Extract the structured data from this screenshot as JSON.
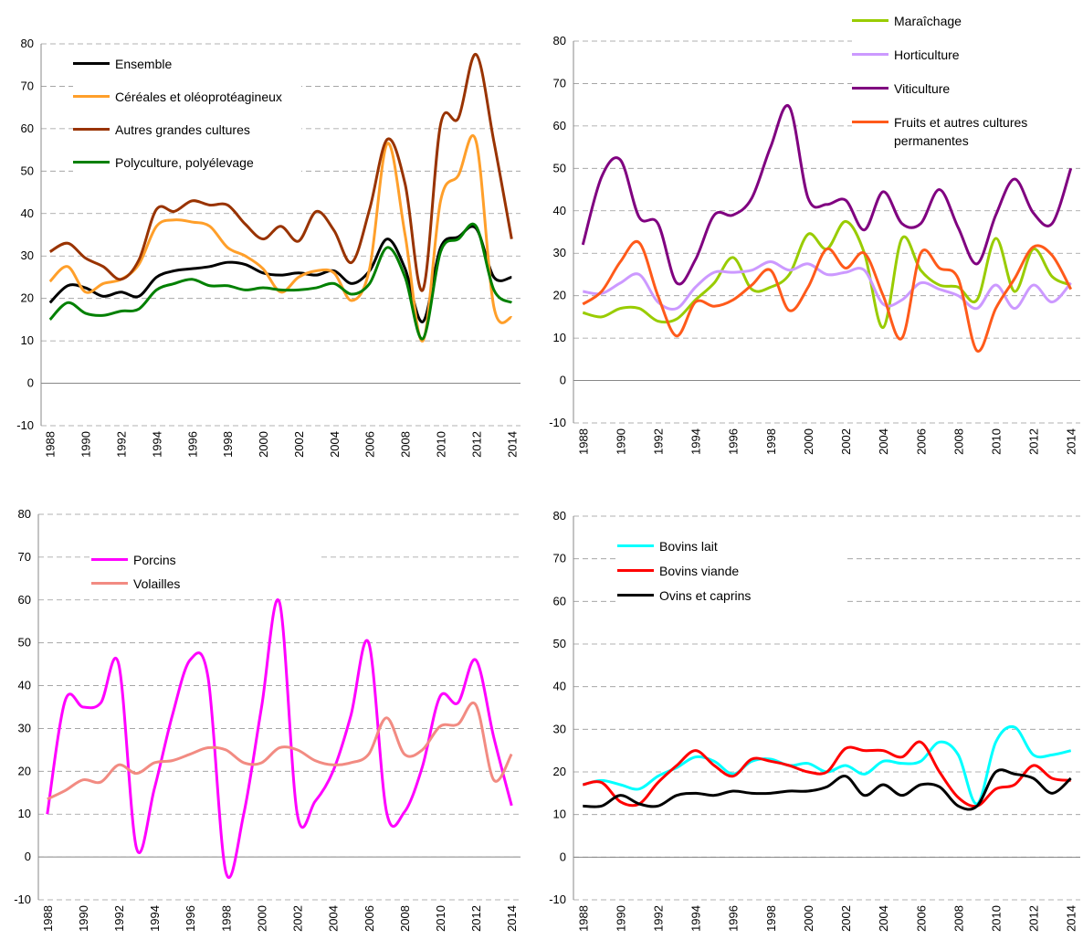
{
  "chart_data": [
    {
      "type": "line",
      "legend": "upper left",
      "grid": true,
      "x": [
        1988,
        1989,
        1990,
        1991,
        1992,
        1993,
        1994,
        1995,
        1996,
        1997,
        1998,
        1999,
        2000,
        2001,
        2002,
        2003,
        2004,
        2005,
        2006,
        2007,
        2008,
        2009,
        2010,
        2011,
        2012,
        2013,
        2014
      ],
      "xlim": [
        1987.5,
        2014.5
      ],
      "xticks": [
        1988,
        1990,
        1992,
        1994,
        1996,
        1998,
        2000,
        2002,
        2004,
        2006,
        2008,
        2010,
        2012,
        2014
      ],
      "ylim": [
        -10,
        80
      ],
      "yticks": [
        -10,
        0,
        10,
        20,
        30,
        40,
        50,
        60,
        70,
        80
      ],
      "series": [
        {
          "name": "Ensemble",
          "color": "#000000",
          "values": [
            19,
            23,
            22.5,
            20.5,
            21.5,
            20.5,
            25,
            26.5,
            27,
            27.5,
            28.5,
            28,
            26,
            25.5,
            26,
            25.5,
            26.5,
            23.5,
            26.5,
            34,
            27,
            14.5,
            32,
            34.5,
            36.5,
            25,
            25
          ]
        },
        {
          "name": "Céréales et oléoprotéagineux",
          "color": "#ff9f2a",
          "values": [
            24,
            27.5,
            21.5,
            23.5,
            24.5,
            28,
            37,
            38.5,
            38,
            37,
            32,
            30,
            27,
            21.5,
            25,
            26.5,
            26,
            19.5,
            27,
            56.5,
            35,
            10,
            43,
            49,
            57,
            18,
            15.5
          ]
        },
        {
          "name": "Autres grandes cultures",
          "color": "#993300",
          "values": [
            31,
            33,
            29.5,
            27.5,
            24.5,
            29,
            41,
            40.5,
            43,
            42,
            42,
            37.5,
            34,
            37,
            33.5,
            40.5,
            36,
            28.5,
            41,
            57.5,
            47,
            22,
            61,
            62.5,
            77.5,
            57,
            34
          ]
        },
        {
          "name": "Polyculture, polyélevage",
          "color": "#008000",
          "values": [
            15,
            19,
            16.5,
            16,
            17,
            17.5,
            22,
            23.5,
            24.5,
            23,
            23,
            22,
            22.5,
            22,
            22,
            22.5,
            23.5,
            21,
            23.5,
            32,
            25,
            10.5,
            31,
            34,
            37,
            22,
            19
          ]
        }
      ]
    },
    {
      "type": "line",
      "legend": "upper right",
      "grid": true,
      "x": [
        1988,
        1989,
        1990,
        1991,
        1992,
        1993,
        1994,
        1995,
        1996,
        1997,
        1998,
        1999,
        2000,
        2001,
        2002,
        2003,
        2004,
        2005,
        2006,
        2007,
        2008,
        2009,
        2010,
        2011,
        2012,
        2013,
        2014
      ],
      "xlim": [
        1987.5,
        2014.5
      ],
      "xticks": [
        1988,
        1990,
        1992,
        1994,
        1996,
        1998,
        2000,
        2002,
        2004,
        2006,
        2008,
        2010,
        2012,
        2014
      ],
      "ylim": [
        -10,
        80
      ],
      "yticks": [
        -10,
        0,
        10,
        20,
        30,
        40,
        50,
        60,
        70,
        80
      ],
      "series": [
        {
          "name": "Maraîchage",
          "color": "#99cc00",
          "values": [
            16,
            15,
            17,
            17,
            14,
            14.5,
            19,
            23,
            29,
            21.5,
            22,
            25,
            34.5,
            31,
            37.5,
            30,
            12.5,
            33.5,
            26,
            22.5,
            22,
            19,
            33.5,
            21,
            31,
            24.5,
            22.5
          ]
        },
        {
          "name": "Horticulture",
          "color": "#cc99ff",
          "values": [
            21,
            20.5,
            23,
            25,
            18.5,
            17,
            22,
            25.5,
            25.5,
            26,
            28,
            26,
            27.5,
            25,
            25.5,
            26,
            18,
            19,
            23,
            21.5,
            20,
            17,
            22.5,
            17,
            22.5,
            18.5,
            23
          ]
        },
        {
          "name": "Viticulture",
          "color": "#800080",
          "values": [
            32,
            48,
            52,
            38.5,
            37,
            23,
            28.5,
            39,
            39,
            43,
            55,
            64.5,
            43,
            41.5,
            42.5,
            35.5,
            44.5,
            37,
            37,
            45,
            36,
            27.5,
            39,
            47.5,
            39.5,
            37,
            50
          ]
        },
        {
          "name": "Fruits et autres cultures permanentes",
          "color": "#ff5a1a",
          "values": [
            18,
            21,
            28,
            32.5,
            20,
            10.5,
            18.5,
            17.5,
            19,
            22.5,
            26,
            16.5,
            22,
            31,
            26.5,
            30,
            20,
            10,
            30,
            26.5,
            24,
            7,
            17,
            24,
            31.5,
            29.5,
            21.5
          ]
        }
      ]
    },
    {
      "type": "line",
      "legend": "upper left",
      "grid": true,
      "x": [
        1988,
        1989,
        1990,
        1991,
        1992,
        1993,
        1994,
        1995,
        1996,
        1997,
        1998,
        1999,
        2000,
        2001,
        2002,
        2003,
        2004,
        2005,
        2006,
        2007,
        2008,
        2009,
        2010,
        2011,
        2012,
        2013,
        2014
      ],
      "xlim": [
        1987.5,
        2014.5
      ],
      "xticks": [
        1988,
        1990,
        1992,
        1994,
        1996,
        1998,
        2000,
        2002,
        2004,
        2006,
        2008,
        2010,
        2012,
        2014
      ],
      "ylim": [
        -10,
        80
      ],
      "yticks": [
        -10,
        0,
        10,
        20,
        30,
        40,
        50,
        60,
        70,
        80
      ],
      "series": [
        {
          "name": "Porcins",
          "color": "#ff00ff",
          "values": [
            10,
            36.5,
            35,
            36,
            45,
            2,
            16,
            33,
            46,
            42,
            -3.5,
            10,
            35,
            59.5,
            10,
            13,
            20,
            33,
            50,
            10.5,
            10.5,
            21,
            37.5,
            36,
            46,
            28,
            12
          ]
        },
        {
          "name": "Volailles",
          "color": "#f28b82",
          "values": [
            13.5,
            15.5,
            18,
            17.5,
            21.5,
            19.5,
            22,
            22.5,
            24,
            25.5,
            25,
            22,
            22,
            25.5,
            25,
            22.5,
            21.5,
            22,
            24,
            32.5,
            24,
            25,
            30.5,
            31,
            35.5,
            18,
            24
          ]
        }
      ]
    },
    {
      "type": "line",
      "legend": "upper left",
      "grid": true,
      "x": [
        1988,
        1989,
        1990,
        1991,
        1992,
        1993,
        1994,
        1995,
        1996,
        1997,
        1998,
        1999,
        2000,
        2001,
        2002,
        2003,
        2004,
        2005,
        2006,
        2007,
        2008,
        2009,
        2010,
        2011,
        2012,
        2013,
        2014
      ],
      "xlim": [
        1987.5,
        2014.5
      ],
      "xticks": [
        1988,
        1990,
        1992,
        1994,
        1996,
        1998,
        2000,
        2002,
        2004,
        2006,
        2008,
        2010,
        2012,
        2014
      ],
      "ylim": [
        -10,
        80
      ],
      "yticks": [
        -10,
        0,
        10,
        20,
        30,
        40,
        50,
        60,
        70,
        80
      ],
      "series": [
        {
          "name": "Bovins lait",
          "color": "#00ffff",
          "values": [
            17,
            18,
            17,
            16,
            19,
            21,
            23.5,
            22.5,
            19.5,
            22.5,
            23,
            21.5,
            22,
            20,
            21.5,
            19.5,
            22.5,
            22,
            22.5,
            27,
            24,
            12.5,
            27,
            30.5,
            24,
            24,
            25
          ]
        },
        {
          "name": "Bovins viande",
          "color": "#ff0000",
          "values": [
            17,
            17.5,
            13,
            12.5,
            17.5,
            21.5,
            25,
            21.5,
            19,
            23,
            22.5,
            21.5,
            20,
            20,
            25.5,
            25,
            25,
            23.5,
            27,
            20,
            14,
            12,
            16,
            17,
            21.5,
            18.5,
            18
          ]
        },
        {
          "name": "Ovins et caprins",
          "color": "#000000",
          "values": [
            12,
            12,
            14.5,
            12.5,
            12,
            14.5,
            15,
            14.5,
            15.5,
            15,
            15,
            15.5,
            15.5,
            16.5,
            19,
            14.5,
            17,
            14.5,
            17,
            16.5,
            12,
            12,
            20,
            19.5,
            18.5,
            15,
            18.5
          ]
        }
      ]
    }
  ]
}
